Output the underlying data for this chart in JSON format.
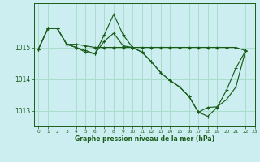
{
  "xlabel": "Graphe pression niveau de la mer (hPa)",
  "background_color": "#cceef0",
  "grid_color": "#aaddcc",
  "line_color": "#1a5c1a",
  "xlim": [
    -0.5,
    23
  ],
  "ylim": [
    1012.5,
    1016.4
  ],
  "yticks": [
    1013,
    1014,
    1015
  ],
  "xticks": [
    0,
    1,
    2,
    3,
    4,
    5,
    6,
    7,
    8,
    9,
    10,
    11,
    12,
    13,
    14,
    15,
    16,
    17,
    18,
    19,
    20,
    21,
    22,
    23
  ],
  "series1": [
    1014.95,
    1015.6,
    1015.6,
    1015.1,
    1015.1,
    1015.05,
    1015.0,
    1015.0,
    1015.0,
    1015.0,
    1015.0,
    1015.0,
    1015.0,
    1015.0,
    1015.0,
    1015.0,
    1015.0,
    1015.0,
    1015.0,
    1015.0,
    1015.0,
    1015.0,
    1014.9
  ],
  "series2": [
    1014.95,
    1015.6,
    1015.6,
    1015.1,
    1015.0,
    1014.85,
    1014.8,
    1015.4,
    1016.05,
    1015.4,
    1015.0,
    1014.85,
    1014.55,
    1014.2,
    1013.95,
    1013.75,
    1013.45,
    1012.95,
    1012.82,
    1013.1,
    1013.65,
    1014.35,
    1014.88
  ],
  "series3": [
    1014.95,
    1015.6,
    1015.6,
    1015.1,
    1015.0,
    1014.9,
    1014.8,
    1015.2,
    1015.45,
    1015.05,
    1015.0,
    1014.85,
    1014.55,
    1014.2,
    1013.95,
    1013.75,
    1013.45,
    1012.95,
    1013.1,
    1013.12,
    1013.35,
    1013.75,
    1014.88
  ]
}
